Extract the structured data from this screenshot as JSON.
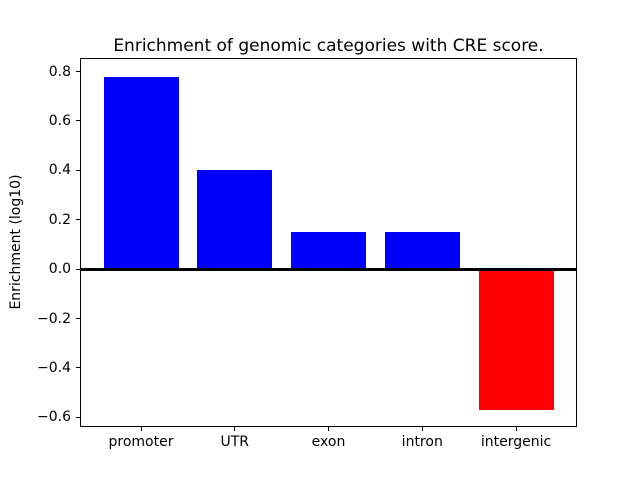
{
  "chart_data": {
    "type": "bar",
    "title": "Enrichment of genomic categories with CRE score.",
    "xlabel": "",
    "ylabel": "Enrichment (log10)",
    "categories": [
      "promoter",
      "UTR",
      "exon",
      "intron",
      "intergenic"
    ],
    "values": [
      0.78,
      0.4,
      0.15,
      0.15,
      -0.57
    ],
    "bar_colors": [
      "#0000ff",
      "#0000ff",
      "#0000ff",
      "#0000ff",
      "#ff0000"
    ],
    "positive_color": "#0000ff",
    "negative_color": "#ff0000",
    "axis_color": "#000000",
    "background_color": "#ffffff",
    "yticks": [
      0.8,
      0.6,
      0.4,
      0.2,
      0.0,
      -0.2,
      -0.4,
      -0.6
    ],
    "ytick_labels": [
      "0.8",
      "0.6",
      "0.4",
      "0.2",
      "0.0",
      "−0.2",
      "−0.4",
      "−0.6"
    ],
    "ylim": [
      -0.635,
      0.851
    ],
    "xlim": [
      -0.64,
      4.64
    ],
    "bar_width": 0.8,
    "zero_line": true,
    "grid": false,
    "legend": false
  }
}
